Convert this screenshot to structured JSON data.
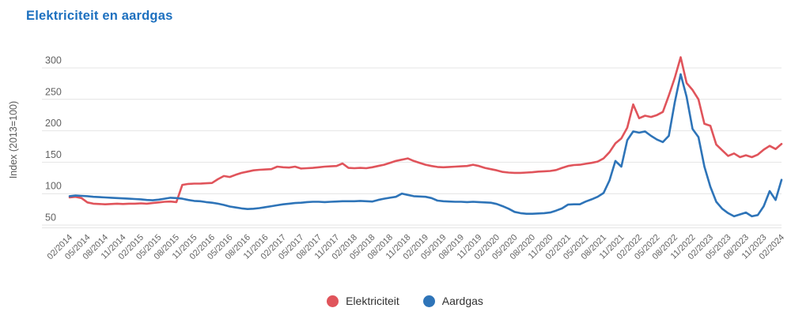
{
  "header": {
    "title": "Elektriciteit en aardgas",
    "title_color": "#1d70bf"
  },
  "axis": {
    "grid_color": "#e4e4e4",
    "tick_color": "#636363"
  },
  "chart_data": {
    "type": "line",
    "title": "Elektriciteit en aardgas",
    "xlabel": "",
    "ylabel": "Index (2013=100)",
    "ylim": [
      50,
      300
    ],
    "yticks": [
      50,
      100,
      150,
      200,
      250,
      300
    ],
    "grid": true,
    "legend_position": "bottom",
    "xtick_every": 3,
    "x": [
      "02/2014",
      "03/2014",
      "04/2014",
      "05/2014",
      "06/2014",
      "07/2014",
      "08/2014",
      "09/2014",
      "10/2014",
      "11/2014",
      "12/2014",
      "01/2015",
      "02/2015",
      "03/2015",
      "04/2015",
      "05/2015",
      "06/2015",
      "07/2015",
      "08/2015",
      "09/2015",
      "10/2015",
      "11/2015",
      "12/2015",
      "01/2016",
      "02/2016",
      "03/2016",
      "04/2016",
      "05/2016",
      "06/2016",
      "07/2016",
      "08/2016",
      "09/2016",
      "10/2016",
      "11/2016",
      "12/2016",
      "01/2017",
      "02/2017",
      "03/2017",
      "04/2017",
      "05/2017",
      "06/2017",
      "07/2017",
      "08/2017",
      "09/2017",
      "10/2017",
      "11/2017",
      "12/2017",
      "01/2018",
      "02/2018",
      "03/2018",
      "04/2018",
      "05/2018",
      "06/2018",
      "07/2018",
      "08/2018",
      "09/2018",
      "10/2018",
      "11/2018",
      "12/2018",
      "01/2019",
      "02/2019",
      "03/2019",
      "04/2019",
      "05/2019",
      "06/2019",
      "07/2019",
      "08/2019",
      "09/2019",
      "10/2019",
      "11/2019",
      "12/2019",
      "01/2020",
      "02/2020",
      "03/2020",
      "04/2020",
      "05/2020",
      "06/2020",
      "07/2020",
      "08/2020",
      "09/2020",
      "10/2020",
      "11/2020",
      "12/2020",
      "01/2021",
      "02/2021",
      "03/2021",
      "04/2021",
      "05/2021",
      "06/2021",
      "07/2021",
      "08/2021",
      "09/2021",
      "10/2021",
      "11/2021",
      "12/2021",
      "01/2022",
      "02/2022",
      "03/2022",
      "04/2022",
      "05/2022",
      "06/2022",
      "07/2022",
      "08/2022",
      "09/2022",
      "10/2022",
      "11/2022",
      "12/2022",
      "01/2023",
      "02/2023",
      "03/2023",
      "04/2023",
      "05/2023",
      "06/2023",
      "07/2023",
      "08/2023",
      "09/2023",
      "10/2023",
      "11/2023",
      "12/2023",
      "01/2024",
      "02/2024"
    ],
    "series": [
      {
        "name": "Elektriciteit",
        "color": "#e0545b",
        "values": [
          94,
          95,
          93,
          86,
          84,
          83.5,
          83,
          83.5,
          84,
          83.5,
          84,
          84,
          84.5,
          84,
          85,
          86,
          87,
          87.5,
          86.5,
          114,
          115.5,
          116,
          116,
          116.5,
          117,
          123,
          128,
          126.5,
          130,
          133,
          135,
          137,
          138,
          138.5,
          139,
          143,
          142,
          141.5,
          143,
          140,
          140.5,
          141,
          142,
          143,
          143.5,
          144,
          148,
          141,
          140.5,
          141,
          140.5,
          142,
          144,
          146,
          149,
          152,
          154,
          156,
          152,
          149,
          146,
          144,
          142.5,
          142,
          142.5,
          143,
          143.5,
          144,
          146,
          144,
          141,
          139,
          137,
          134.5,
          133.5,
          133,
          133,
          133.5,
          134,
          135,
          135.5,
          136,
          137.5,
          141,
          144,
          145.5,
          146,
          147.5,
          149,
          151,
          156,
          166,
          180,
          188,
          205,
          242,
          220,
          224,
          222,
          225,
          230,
          256,
          284,
          317,
          276,
          265,
          250,
          211,
          208,
          178,
          169,
          160,
          164,
          158,
          161,
          158,
          162,
          170,
          176,
          171,
          179
        ]
      },
      {
        "name": "Aardgas",
        "color": "#2e74b8",
        "values": [
          96,
          97,
          96.5,
          96,
          95,
          94.5,
          94,
          93.5,
          93,
          92.5,
          92,
          91.5,
          91,
          90,
          89.5,
          90.5,
          92,
          93.5,
          93,
          92,
          90,
          88.5,
          88,
          86.5,
          85.5,
          84,
          82,
          79.5,
          78,
          76.5,
          75.5,
          76,
          77,
          78.5,
          80,
          81.5,
          83,
          84,
          85,
          85.5,
          86.5,
          87,
          87,
          86.5,
          87,
          87.5,
          88,
          88,
          88,
          88.5,
          88,
          87.5,
          90,
          92,
          93.5,
          95,
          100,
          98,
          96,
          95.5,
          95,
          93,
          89,
          88,
          87.5,
          87,
          87,
          86.5,
          87,
          86.5,
          86,
          85.5,
          83.5,
          80,
          76,
          71,
          69,
          68,
          68,
          68.5,
          69,
          70,
          73,
          76.5,
          82.5,
          83,
          83,
          87.5,
          91,
          95,
          101,
          121,
          152,
          143,
          185,
          199,
          197,
          199,
          192,
          186,
          182,
          192,
          245,
          290,
          254,
          203,
          190,
          143,
          111,
          87,
          76,
          69,
          64,
          67,
          70,
          64,
          66,
          80,
          104,
          90,
          122
        ]
      }
    ]
  }
}
